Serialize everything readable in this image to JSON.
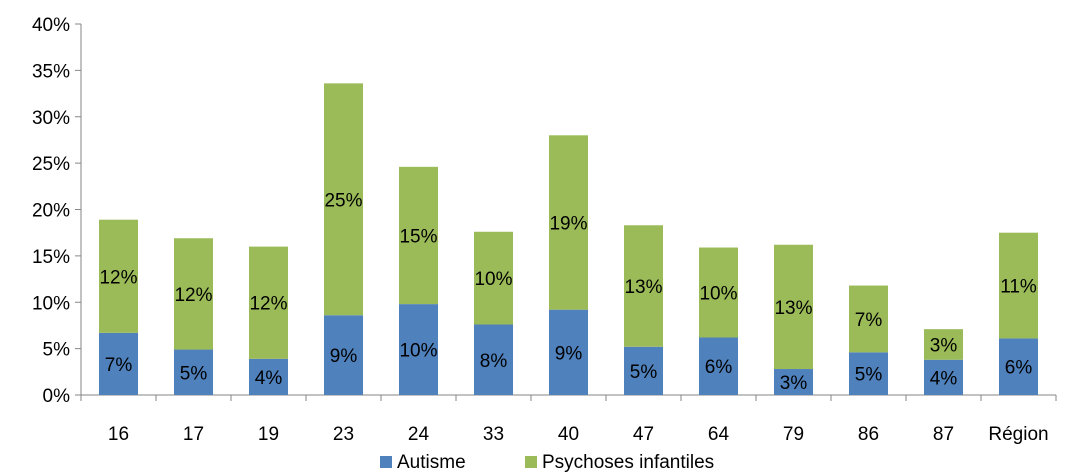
{
  "chart_data": {
    "type": "bar",
    "stacked": true,
    "categories": [
      "16",
      "17",
      "19",
      "23",
      "24",
      "33",
      "40",
      "47",
      "64",
      "79",
      "86",
      "87",
      "Région"
    ],
    "series": [
      {
        "name": "Autisme",
        "color": "#4f81bd",
        "values": [
          6.7,
          4.9,
          3.9,
          8.6,
          9.8,
          7.6,
          9.2,
          5.2,
          6.2,
          2.8,
          4.6,
          3.8,
          6.1
        ],
        "labels": [
          "7%",
          "5%",
          "4%",
          "9%",
          "10%",
          "8%",
          "9%",
          "5%",
          "6%",
          "3%",
          "5%",
          "4%",
          "6%"
        ]
      },
      {
        "name": "Psychoses infantiles",
        "color": "#9bbb59",
        "values": [
          12.2,
          12.0,
          12.1,
          25.0,
          14.8,
          10.0,
          18.8,
          13.1,
          9.7,
          13.4,
          7.2,
          3.3,
          11.4
        ],
        "labels": [
          "12%",
          "12%",
          "12%",
          "25%",
          "15%",
          "10%",
          "19%",
          "13%",
          "10%",
          "13%",
          "7%",
          "3%",
          "11%"
        ]
      }
    ],
    "yticks": [
      "0%",
      "5%",
      "10%",
      "15%",
      "20%",
      "25%",
      "30%",
      "35%",
      "40%"
    ],
    "ylim": [
      0,
      40
    ],
    "grid": false,
    "legend": "bottom",
    "title": "",
    "xlabel": "",
    "ylabel": ""
  }
}
